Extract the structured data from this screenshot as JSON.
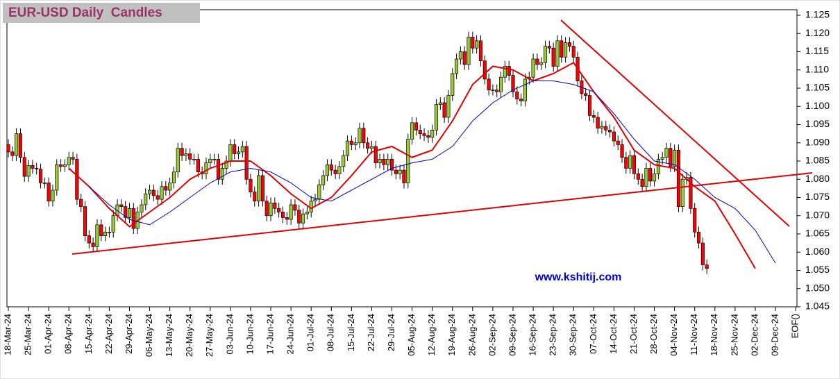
{
  "chart_data": {
    "type": "candlestick",
    "title": "EUR-USD Daily  Candles",
    "watermark": "www.kshitij.com",
    "categories": [
      "18-Mar-24",
      null,
      null,
      null,
      null,
      "25-Mar-24",
      null,
      null,
      null,
      null,
      "01-Apr-24",
      null,
      null,
      null,
      null,
      "08-Apr-24",
      null,
      null,
      null,
      null,
      "15-Apr-24",
      null,
      null,
      null,
      null,
      "22-Apr-24",
      null,
      null,
      null,
      null,
      "29-Apr-24",
      null,
      null,
      null,
      null,
      "06-May-24",
      null,
      null,
      null,
      null,
      "13-May-24",
      null,
      null,
      null,
      null,
      "20-May-24",
      null,
      null,
      null,
      null,
      "27-May-24",
      null,
      null,
      null,
      null,
      "03-Jun-24",
      null,
      null,
      null,
      null,
      "10-Jun-24",
      null,
      null,
      null,
      null,
      "17-Jun-24",
      null,
      null,
      null,
      null,
      "24-Jun-24",
      null,
      null,
      null,
      null,
      "01-Jul-24",
      null,
      null,
      null,
      null,
      "08-Jul-24",
      null,
      null,
      null,
      null,
      "15-Jul-24",
      null,
      null,
      null,
      null,
      "22-Jul-24",
      null,
      null,
      null,
      null,
      "29-Jul-24",
      null,
      null,
      null,
      null,
      "05-Aug-24",
      null,
      null,
      null,
      null,
      "12-Aug-24",
      null,
      null,
      null,
      null,
      "19-Aug-24",
      null,
      null,
      null,
      null,
      "26-Aug-24",
      null,
      null,
      null,
      null,
      "02-Sep-24",
      null,
      null,
      null,
      null,
      "09-Sep-24",
      null,
      null,
      null,
      null,
      "16-Sep-24",
      null,
      null,
      null,
      null,
      "23-Sep-24",
      null,
      null,
      null,
      null,
      "30-Sep-24",
      null,
      null,
      null,
      null,
      "07-Oct-24",
      null,
      null,
      null,
      null,
      "14-Oct-24",
      null,
      null,
      null,
      null,
      "21-Oct-24",
      null,
      null,
      null,
      null,
      "28-Oct-24",
      null,
      null,
      null,
      null,
      "04-Nov-24",
      null,
      null,
      null,
      null,
      "11-Nov-24",
      null,
      null,
      null,
      null,
      "18-Nov-24",
      null,
      null,
      null,
      null,
      "25-Nov-24",
      null,
      null,
      null,
      null,
      "02-Dec-24",
      null,
      null,
      null,
      null,
      "09-Dec-24",
      null,
      null,
      null,
      null,
      "EOF()"
    ],
    "open": [
      1.0895,
      1.0875,
      1.0865,
      1.0925,
      1.086,
      1.0808,
      1.0838,
      1.083,
      1.0828,
      1.079,
      1.079,
      1.074,
      1.077,
      1.084,
      1.0835,
      1.084,
      1.086,
      1.0855,
      1.0745,
      1.0725,
      1.0645,
      1.0625,
      1.0615,
      1.0675,
      1.0645,
      1.0655,
      1.0655,
      1.07,
      1.073,
      1.0725,
      1.0695,
      1.072,
      1.0665,
      1.071,
      1.073,
      1.076,
      1.077,
      1.0755,
      1.0745,
      1.078,
      1.077,
      1.079,
      1.082,
      1.0885,
      1.0865,
      1.087,
      1.0855,
      1.0855,
      1.082,
      1.0815,
      1.0845,
      1.0855,
      1.0855,
      1.08,
      1.083,
      1.085,
      1.0895,
      1.087,
      1.0875,
      1.089,
      1.08,
      1.0765,
      1.074,
      1.081,
      1.074,
      1.07,
      1.0735,
      1.072,
      1.071,
      1.0695,
      1.069,
      1.073,
      1.0715,
      1.068,
      1.0705,
      1.071,
      1.074,
      1.0745,
      1.0785,
      1.081,
      1.084,
      1.0825,
      1.0815,
      1.0835,
      1.0865,
      1.0905,
      1.0895,
      1.09,
      1.094,
      1.09,
      1.0885,
      1.089,
      1.0845,
      1.0855,
      1.084,
      1.0855,
      1.0825,
      1.0815,
      1.0825,
      1.079,
      1.091,
      1.0955,
      1.0935,
      1.0925,
      1.092,
      1.0915,
      1.0935,
      1.1005,
      1.101,
      1.097,
      1.103,
      1.109,
      1.113,
      1.115,
      1.1115,
      1.119,
      1.116,
      1.118,
      1.1125,
      1.1075,
      1.1045,
      1.1045,
      1.104,
      1.108,
      1.111,
      1.1085,
      1.104,
      1.102,
      1.1015,
      1.1075,
      1.108,
      1.113,
      1.1115,
      1.112,
      1.1165,
      1.116,
      1.111,
      1.118,
      1.1135,
      1.1175,
      1.1165,
      1.1135,
      1.107,
      1.1035,
      1.103,
      1.0975,
      1.097,
      1.094,
      1.0945,
      1.0935,
      1.093,
      1.0905,
      1.0895,
      1.086,
      1.083,
      1.0865,
      1.0815,
      1.08,
      1.078,
      1.083,
      1.0795,
      1.0815,
      1.0855,
      1.086,
      1.0885,
      1.0835,
      1.088,
      1.0725,
      1.08,
      1.0805,
      1.072,
      1.0655,
      1.0625,
      1.0565,
      null,
      null,
      null,
      null,
      null,
      null,
      null,
      null,
      null,
      null,
      null,
      null,
      null,
      null,
      null,
      null,
      null,
      null,
      null,
      null,
      null,
      null
    ],
    "high": [
      1.091,
      1.089,
      1.094,
      1.094,
      1.0875,
      1.0853,
      1.0853,
      1.0845,
      1.0843,
      1.0805,
      1.0805,
      1.0785,
      1.0855,
      1.0855,
      1.0855,
      1.0875,
      1.0875,
      1.087,
      1.076,
      1.074,
      1.066,
      1.064,
      1.069,
      1.069,
      1.067,
      1.067,
      1.0715,
      1.0745,
      1.0745,
      1.074,
      1.0735,
      1.0735,
      1.0725,
      1.0745,
      1.0775,
      1.0785,
      1.0785,
      1.077,
      1.0795,
      1.0795,
      1.0805,
      1.0835,
      1.09,
      1.09,
      1.0885,
      1.0885,
      1.087,
      1.087,
      1.0835,
      1.086,
      1.087,
      1.087,
      1.087,
      1.0845,
      1.0865,
      1.091,
      1.091,
      1.089,
      1.0905,
      1.0905,
      1.0815,
      1.078,
      1.0825,
      1.0825,
      1.0755,
      1.075,
      1.075,
      1.0735,
      1.0725,
      1.071,
      1.0745,
      1.0745,
      1.073,
      1.072,
      1.0725,
      1.0755,
      1.076,
      1.08,
      1.0825,
      1.0855,
      1.0855,
      1.084,
      1.085,
      1.088,
      1.092,
      1.092,
      1.0915,
      1.0955,
      1.0955,
      1.0915,
      1.0905,
      1.0905,
      1.087,
      1.087,
      1.087,
      1.087,
      1.084,
      1.084,
      1.084,
      1.0925,
      1.097,
      1.097,
      1.095,
      1.094,
      1.0935,
      1.095,
      1.102,
      1.1025,
      1.1025,
      1.1045,
      1.1105,
      1.1145,
      1.1165,
      1.1165,
      1.1205,
      1.1205,
      1.1195,
      1.1195,
      1.114,
      1.109,
      1.106,
      1.106,
      1.1095,
      1.1125,
      1.1125,
      1.11,
      1.1055,
      1.1035,
      1.109,
      1.1095,
      1.1145,
      1.1145,
      1.1135,
      1.118,
      1.118,
      1.1175,
      1.1195,
      1.1195,
      1.119,
      1.119,
      1.118,
      1.115,
      1.1085,
      1.105,
      1.1045,
      1.099,
      1.0985,
      1.096,
      1.096,
      1.095,
      1.0945,
      1.092,
      1.091,
      1.0875,
      1.088,
      1.088,
      1.083,
      1.0815,
      1.0845,
      1.0845,
      1.083,
      1.087,
      1.0875,
      1.09,
      1.09,
      1.0895,
      1.0895,
      1.0815,
      1.082,
      1.082,
      1.0735,
      1.067,
      1.064,
      1.058,
      null,
      null,
      null,
      null,
      null,
      null,
      null,
      null,
      null,
      null,
      null,
      null,
      null,
      null,
      null,
      null,
      null,
      null,
      null,
      null,
      null,
      null
    ],
    "low": [
      1.086,
      1.085,
      1.085,
      1.0845,
      1.0793,
      1.0793,
      1.0815,
      1.0813,
      1.0775,
      1.0775,
      1.0725,
      1.0725,
      1.0755,
      1.082,
      1.082,
      1.0825,
      1.084,
      1.073,
      1.071,
      1.063,
      1.061,
      1.06,
      1.06,
      1.063,
      1.063,
      1.064,
      1.064,
      1.0685,
      1.071,
      1.068,
      1.068,
      1.065,
      1.065,
      1.0695,
      1.0715,
      1.0745,
      1.074,
      1.073,
      1.073,
      1.0755,
      1.0755,
      1.0775,
      1.0805,
      1.085,
      1.085,
      1.084,
      1.084,
      1.0805,
      1.08,
      1.08,
      1.083,
      1.084,
      1.0785,
      1.0785,
      1.0815,
      1.0835,
      1.0855,
      1.0855,
      1.086,
      1.0785,
      1.075,
      1.0725,
      1.0725,
      1.0725,
      1.0685,
      1.0685,
      1.0705,
      1.0695,
      1.068,
      1.0675,
      1.0675,
      1.07,
      1.0665,
      1.0665,
      1.069,
      1.0695,
      1.0725,
      1.073,
      1.077,
      1.0795,
      1.081,
      1.08,
      1.08,
      1.082,
      1.085,
      1.088,
      1.088,
      1.0885,
      1.0885,
      1.087,
      1.087,
      1.083,
      1.083,
      1.0825,
      1.0825,
      1.081,
      1.08,
      1.08,
      1.0775,
      1.0775,
      1.0895,
      1.092,
      1.091,
      1.0905,
      1.09,
      1.09,
      1.092,
      1.099,
      1.0955,
      1.0955,
      1.1015,
      1.1075,
      1.1115,
      1.11,
      1.11,
      1.1145,
      1.1145,
      1.111,
      1.106,
      1.103,
      1.103,
      1.1025,
      1.1025,
      1.1065,
      1.107,
      1.1025,
      1.1005,
      1.1,
      1.1,
      1.106,
      1.1065,
      1.11,
      1.11,
      1.1105,
      1.1145,
      1.1095,
      1.1095,
      1.112,
      1.112,
      1.115,
      1.112,
      1.1055,
      1.102,
      1.1015,
      1.096,
      1.0955,
      1.0925,
      1.0925,
      1.092,
      1.0915,
      1.089,
      1.088,
      1.0845,
      1.0815,
      1.0815,
      1.08,
      1.0785,
      1.0765,
      1.0765,
      1.078,
      1.078,
      1.08,
      1.084,
      1.0845,
      1.082,
      1.082,
      1.071,
      1.071,
      1.0785,
      1.0705,
      1.064,
      1.061,
      1.055,
      1.054,
      null,
      null,
      null,
      null,
      null,
      null,
      null,
      null,
      null,
      null,
      null,
      null,
      null,
      null,
      null,
      null,
      null,
      null,
      null,
      null,
      null,
      null
    ],
    "close": [
      1.0875,
      1.0865,
      1.0925,
      1.086,
      1.0808,
      1.0838,
      1.083,
      1.0828,
      1.079,
      1.079,
      1.074,
      1.077,
      1.084,
      1.0835,
      1.084,
      1.086,
      1.0855,
      1.0745,
      1.0725,
      1.0645,
      1.0625,
      1.0615,
      1.0675,
      1.0645,
      1.0655,
      1.0655,
      1.07,
      1.073,
      1.0725,
      1.0695,
      1.072,
      1.0665,
      1.071,
      1.073,
      1.076,
      1.077,
      1.0755,
      1.0745,
      1.078,
      1.077,
      1.079,
      1.082,
      1.0885,
      1.0865,
      1.087,
      1.0855,
      1.0855,
      1.082,
      1.0815,
      1.0845,
      1.0855,
      1.0855,
      1.08,
      1.083,
      1.085,
      1.0895,
      1.087,
      1.0875,
      1.089,
      1.08,
      1.0765,
      1.074,
      1.081,
      1.074,
      1.07,
      1.0735,
      1.072,
      1.071,
      1.0695,
      1.069,
      1.073,
      1.0715,
      1.068,
      1.0705,
      1.071,
      1.074,
      1.0745,
      1.0785,
      1.081,
      1.084,
      1.0825,
      1.0815,
      1.0835,
      1.0865,
      1.0905,
      1.0895,
      1.09,
      1.094,
      1.09,
      1.0885,
      1.089,
      1.0845,
      1.0855,
      1.084,
      1.0855,
      1.0825,
      1.0815,
      1.0825,
      1.079,
      1.091,
      1.0955,
      1.0935,
      1.0925,
      1.092,
      1.0915,
      1.0935,
      1.1005,
      1.101,
      1.097,
      1.103,
      1.109,
      1.113,
      1.115,
      1.1115,
      1.119,
      1.116,
      1.118,
      1.1125,
      1.1075,
      1.1045,
      1.1045,
      1.104,
      1.108,
      1.111,
      1.1085,
      1.104,
      1.102,
      1.1015,
      1.1075,
      1.108,
      1.113,
      1.1115,
      1.112,
      1.1165,
      1.116,
      1.111,
      1.118,
      1.1135,
      1.1175,
      1.1165,
      1.1135,
      1.107,
      1.1035,
      1.103,
      1.0975,
      1.097,
      1.094,
      1.0945,
      1.0935,
      1.093,
      1.0905,
      1.0895,
      1.086,
      1.083,
      1.0865,
      1.0815,
      1.08,
      1.078,
      1.083,
      1.0795,
      1.0815,
      1.0855,
      1.086,
      1.0885,
      1.0835,
      1.088,
      1.0725,
      1.08,
      1.0805,
      1.072,
      1.0655,
      1.0625,
      1.0565,
      1.0555,
      null,
      null,
      null,
      null,
      null,
      null,
      null,
      null,
      null,
      null,
      null,
      null,
      null,
      null,
      null,
      null,
      null,
      null,
      null,
      null,
      null,
      null
    ],
    "up_color": "#99cc33",
    "down_color": "#ff0000",
    "overlays": [
      {
        "color": "#e00000",
        "x": [
          "08-Apr-24",
          "15-Apr-24",
          "22-Apr-24",
          "29-Apr-24",
          "06-May-24",
          "13-May-24",
          "20-May-24",
          "27-May-24",
          "03-Jun-24",
          "10-Jun-24",
          "17-Jun-24",
          "24-Jun-24",
          "01-Jul-24",
          "08-Jul-24",
          "15-Jul-24",
          "22-Jul-24",
          "29-Jul-24",
          "05-Aug-24",
          "12-Aug-24",
          "19-Aug-24",
          "26-Aug-24",
          "02-Sep-24",
          "09-Sep-24",
          "16-Sep-24",
          "23-Sep-24",
          "30-Sep-24",
          "07-Oct-24",
          "14-Oct-24",
          "21-Oct-24",
          "28-Oct-24",
          "04-Nov-24",
          "11-Nov-24",
          "18-Nov-24",
          "25-Nov-24",
          "02-Dec-24"
        ],
        "values": [
          1.083,
          1.078,
          1.072,
          1.067,
          1.071,
          1.075,
          1.08,
          1.083,
          1.085,
          1.085,
          1.081,
          1.076,
          1.072,
          1.075,
          1.081,
          1.0875,
          1.089,
          1.086,
          1.088,
          1.096,
          1.106,
          1.111,
          1.11,
          1.107,
          1.109,
          1.112,
          1.104,
          1.097,
          1.088,
          1.084,
          1.083,
          1.078,
          1.074,
          1.065,
          1.0555
        ]
      },
      {
        "color": "#0000cc",
        "x": [
          "15-Apr-24",
          "22-Apr-24",
          "29-Apr-24",
          "06-May-24",
          "13-May-24",
          "20-May-24",
          "27-May-24",
          "03-Jun-24",
          "10-Jun-24",
          "17-Jun-24",
          "24-Jun-24",
          "01-Jul-24",
          "08-Jul-24",
          "15-Jul-24",
          "22-Jul-24",
          "29-Jul-24",
          "05-Aug-24",
          "12-Aug-24",
          "19-Aug-24",
          "26-Aug-24",
          "02-Sep-24",
          "09-Sep-24",
          "16-Sep-24",
          "23-Sep-24",
          "30-Sep-24",
          "07-Oct-24",
          "14-Oct-24",
          "21-Oct-24",
          "28-Oct-24",
          "04-Nov-24",
          "11-Nov-24",
          "18-Nov-24",
          "25-Nov-24",
          "02-Dec-24",
          "09-Dec-24"
        ],
        "values": [
          1.078,
          1.073,
          1.069,
          1.0675,
          1.071,
          1.075,
          1.079,
          1.082,
          1.083,
          1.082,
          1.079,
          1.075,
          1.074,
          1.077,
          1.08,
          1.083,
          1.0845,
          1.0855,
          1.089,
          1.096,
          1.101,
          1.1045,
          1.107,
          1.107,
          1.106,
          1.104,
          1.098,
          1.091,
          1.085,
          1.084,
          1.08,
          1.075,
          1.072,
          1.066,
          1.057
        ]
      }
    ],
    "ylim": [
      1.045,
      1.125
    ],
    "yticks": [
      1.045,
      {
        "value": 1.05,
        "label": "1.050"
      },
      1.055,
      {
        "value": 1.06,
        "label": "1.060"
      },
      1.065,
      {
        "value": 1.07,
        "label": "1.070"
      },
      1.075,
      {
        "value": 1.08,
        "label": "1.080"
      },
      1.085,
      {
        "value": 1.09,
        "label": "1.090"
      },
      1.095,
      {
        "value": 1.1,
        "label": "1.100"
      },
      1.105,
      {
        "value": 1.11,
        "label": "1.110"
      },
      1.115,
      {
        "value": 1.12,
        "label": "1.120"
      },
      1.125
    ]
  }
}
